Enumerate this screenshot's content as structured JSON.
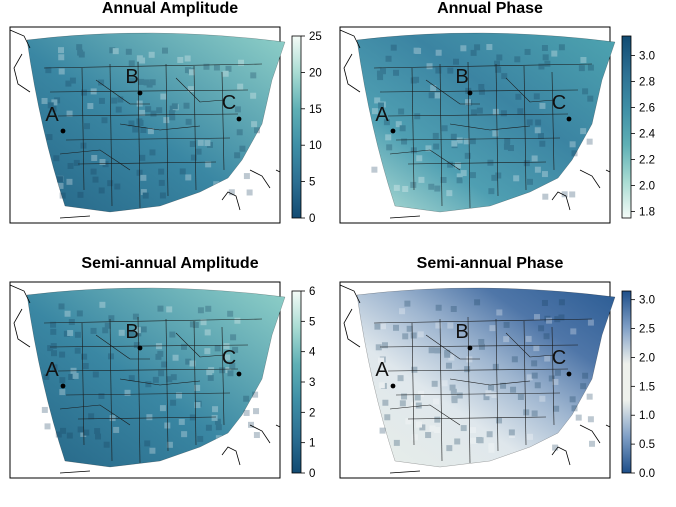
{
  "colors": {
    "map_dark": "#2a6b91",
    "map_mid": "#3f8fa8",
    "map_light": "#a9dcd3",
    "div_dark": "#2b5c94",
    "div_light": "#f2f5ee",
    "outline": "#000000"
  },
  "points": [
    {
      "label": "A"
    },
    {
      "label": "B"
    },
    {
      "label": "C"
    }
  ],
  "panels": [
    {
      "title": "Annual Amplitude",
      "colorbar": {
        "ticks": [
          "0",
          "5",
          "10",
          "15",
          "20",
          "25"
        ],
        "min": 0,
        "max": 25,
        "scheme": "sequential-teal",
        "colors": [
          "#124b72",
          "#2c6f92",
          "#3e8fa6",
          "#5fb0b5",
          "#a9dcd3",
          "#f4fbf7"
        ]
      }
    },
    {
      "title": "Annual Phase",
      "colorbar": {
        "ticks": [
          "1.8",
          "2.0",
          "2.2",
          "2.4",
          "2.6",
          "2.8",
          "3.0"
        ],
        "min": 1.75,
        "max": 3.15,
        "scheme": "sequential-teal-reversed",
        "colors": [
          "#f4fbf7",
          "#a9dcd3",
          "#5fb0b5",
          "#3e8fa6",
          "#2c6f92",
          "#124b72"
        ]
      }
    },
    {
      "title": "Semi-annual Amplitude",
      "colorbar": {
        "ticks": [
          "0",
          "1",
          "2",
          "3",
          "4",
          "5",
          "6"
        ],
        "min": 0,
        "max": 6,
        "scheme": "sequential-teal",
        "colors": [
          "#124b72",
          "#2c6f92",
          "#3e8fa6",
          "#5fb0b5",
          "#a9dcd3",
          "#f4fbf7"
        ]
      }
    },
    {
      "title": "Semi-annual Phase",
      "colorbar": {
        "ticks": [
          "0.0",
          "0.5",
          "1.0",
          "1.5",
          "2.0",
          "2.5",
          "3.0"
        ],
        "min": 0,
        "max": 3.15,
        "scheme": "diverging-blue-white-blue",
        "colors": [
          "#1d4e89",
          "#7f9fc6",
          "#eef1ec",
          "#eef1ec",
          "#7f9fc6",
          "#1d4e89"
        ]
      }
    }
  ]
}
